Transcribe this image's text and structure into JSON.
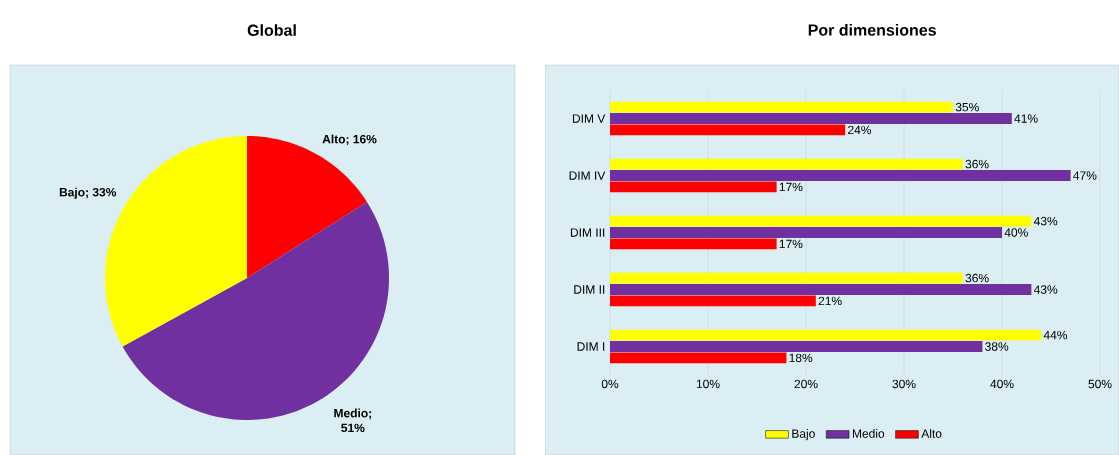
{
  "chart_data": [
    {
      "type": "pie",
      "title": "Global",
      "categories": [
        "Alto",
        "Medio",
        "Bajo"
      ],
      "values": [
        16,
        51,
        33
      ],
      "colors": [
        "#ff0000",
        "#7030a0",
        "#ffff00"
      ],
      "value_labels": [
        "; 16%",
        "; 51%",
        "; 33%"
      ]
    },
    {
      "type": "bar",
      "title": "Por dimensiones",
      "orientation": "horizontal",
      "categories": [
        "DIM V",
        "DIM IV",
        "DIM III",
        "DIM II",
        "DIM I"
      ],
      "series": [
        {
          "name": "Bajo",
          "color": "#ffff00",
          "values": [
            35,
            36,
            43,
            36,
            44
          ],
          "value_labels": [
            "35%",
            "36%",
            "43%",
            "36%",
            "44%"
          ]
        },
        {
          "name": "Medio",
          "color": "#7030a0",
          "values": [
            41,
            47,
            40,
            43,
            38
          ],
          "value_labels": [
            "41%",
            "47%",
            "40%",
            "43%",
            "38%"
          ]
        },
        {
          "name": "Alto",
          "color": "#ff0000",
          "values": [
            24,
            17,
            17,
            21,
            18
          ],
          "value_labels": [
            "24%",
            "17%",
            "17%",
            "21%",
            "18%"
          ]
        }
      ],
      "xlim": [
        0,
        50
      ],
      "xticks": [
        {
          "value": 0,
          "label": "0%"
        },
        {
          "value": 10,
          "label": "10%"
        },
        {
          "value": 20,
          "label": "20%"
        },
        {
          "value": 30,
          "label": "30%"
        },
        {
          "value": 40,
          "label": "40%"
        },
        {
          "value": 50,
          "label": "50%"
        }
      ],
      "grid": "x",
      "legend": "bottom"
    }
  ]
}
